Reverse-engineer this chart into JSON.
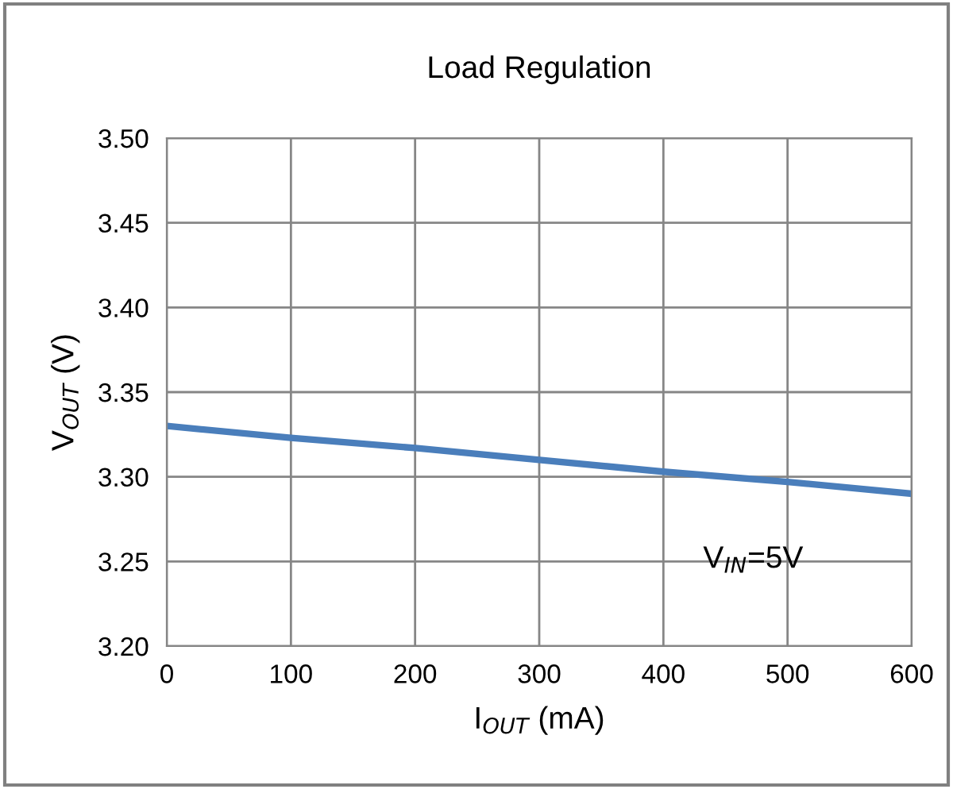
{
  "chart_data": {
    "type": "line",
    "title": "Load Regulation",
    "xlabel": "I$_{OUT}$ (mA)",
    "ylabel": "V$_{OUT}$ (V)",
    "annotations": [
      "V$_{IN}$=5V"
    ],
    "series": [
      {
        "color": "#4a7ebb",
        "x": [
          0,
          100,
          200,
          300,
          400,
          500,
          600
        ],
        "values": [
          3.33,
          3.323,
          3.317,
          3.31,
          3.303,
          3.297,
          3.29
        ]
      }
    ],
    "xlim": [
      0,
      600
    ],
    "xticks": [
      0,
      100,
      200,
      300,
      400,
      500,
      600
    ],
    "ylim": [
      3.2,
      3.5
    ],
    "yticks": [
      {
        "value": 3.2,
        "label": "3.20"
      },
      {
        "value": 3.25,
        "label": "3.25"
      },
      {
        "value": 3.3,
        "label": "3.30"
      },
      {
        "value": 3.35,
        "label": "3.35"
      },
      {
        "value": 3.4,
        "label": "3.40"
      },
      {
        "value": 3.45,
        "label": "3.45"
      },
      {
        "value": 3.5,
        "label": "3.50"
      }
    ],
    "grid": true,
    "marker": "none",
    "line_style": "solid"
  }
}
